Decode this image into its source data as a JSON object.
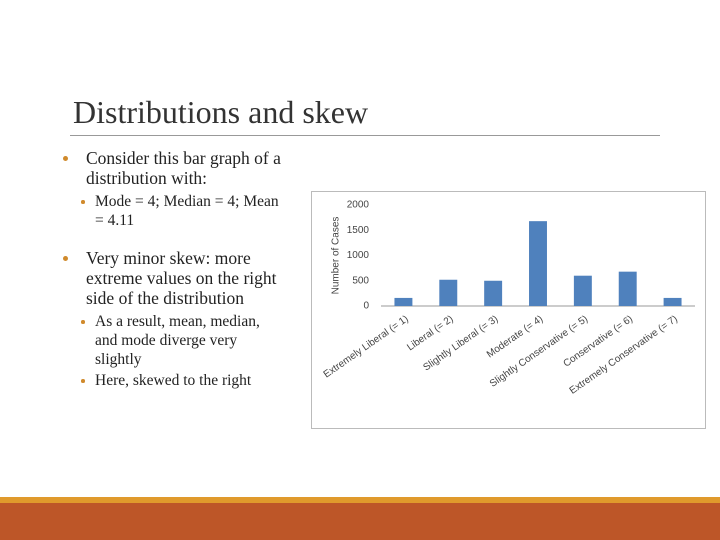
{
  "slide": {
    "title": "Distributions and skew",
    "bullets": [
      {
        "text": "Consider this bar graph of a distribution with:",
        "sub": [
          "Mode = 4; Median = 4; Mean = 4.11"
        ]
      },
      {
        "text": "Very minor skew: more extreme values on the right side of the distribution",
        "sub": [
          "As a result, mean, median, and mode diverge very slightly",
          "Here, skewed to the right"
        ]
      }
    ]
  },
  "chart_data": {
    "type": "bar",
    "y_label": "Number of Cases",
    "categories": [
      "Extremely Liberal (= 1)",
      "Liberal (= 2)",
      "Slightly Liberal (= 3)",
      "Moderate (= 4)",
      "Slightly Conservative (= 5)",
      "Conservative (= 6)",
      "Extremely Conservative (= 7)"
    ],
    "values": [
      160,
      520,
      500,
      1680,
      600,
      680,
      160
    ],
    "color": "#4f81bd",
    "ylim": [
      0,
      2000
    ],
    "yticks": [
      0,
      500,
      1000,
      1500,
      2000
    ],
    "grid": false
  }
}
